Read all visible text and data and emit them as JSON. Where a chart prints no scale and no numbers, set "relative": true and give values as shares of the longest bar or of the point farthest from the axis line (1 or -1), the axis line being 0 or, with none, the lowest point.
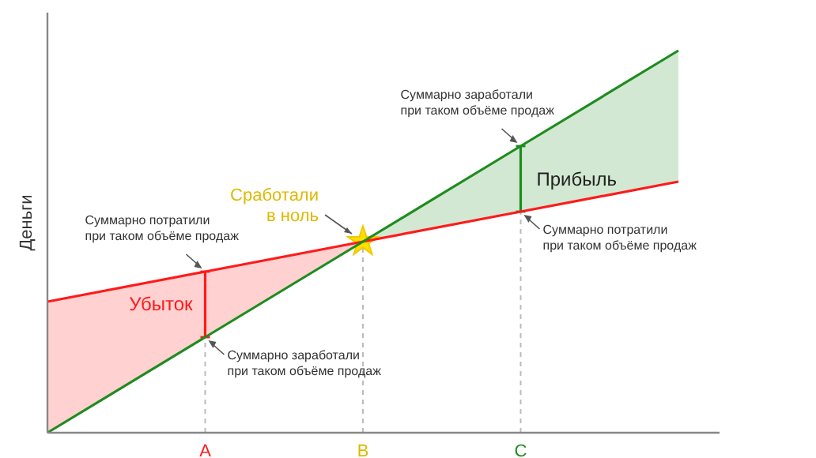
{
  "chart_data": {
    "type": "line",
    "ylabel": "Деньги",
    "relative": true,
    "categories": [
      null,
      "A",
      "B",
      "C",
      null
    ],
    "tick_labels": "x",
    "line_style": "solid",
    "series": [
      {
        "color": "#ff1a1a",
        "values": [
          0.343,
          0.4215,
          0.5,
          0.5785,
          0.657
        ],
        "lower": [
          0,
          0.25,
          0.5,
          null,
          null
        ],
        "upper": [
          0.343,
          0.4215,
          0.5,
          null,
          null
        ]
      },
      {
        "color": "#1e8c1e",
        "values": [
          0,
          0.25,
          0.5,
          0.75,
          1
        ],
        "lower": [
          null,
          null,
          0.5,
          0.5785,
          0.657
        ],
        "upper": [
          null,
          null,
          0.5,
          0.75,
          1
        ]
      }
    ],
    "ref_lines": [
      {
        "axis": "x",
        "value": "A",
        "color": "#bbbbbb",
        "line_style": "dashed"
      },
      {
        "axis": "x",
        "value": "B",
        "color": "#bbbbbb",
        "line_style": "dashed"
      },
      {
        "axis": "x",
        "value": "C",
        "color": "#bbbbbb",
        "line_style": "dashed"
      }
    ],
    "annotations": [
      {
        "text": "Суммарно потратили\nпри таком объёме продаж",
        "x": "A",
        "y": 0.4215
      },
      {
        "text": "Суммарно заработали\nпри таком объёме продаж",
        "x": "A",
        "y": 0.25
      },
      "Убыток",
      {
        "text": "Сработали\nв ноль",
        "x": "B",
        "y": 0.5
      },
      {
        "text": "Суммарно заработали\nпри таком объёме продаж",
        "x": "C",
        "y": 0.75
      },
      "Прибыль",
      {
        "text": "Суммарно потратили\nпри таком объёме продаж",
        "x": "C",
        "y": 0.5785
      }
    ]
  }
}
